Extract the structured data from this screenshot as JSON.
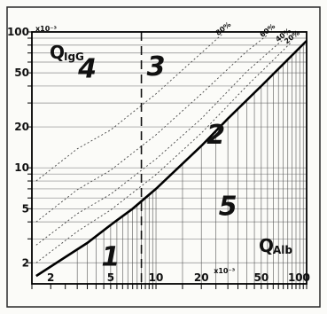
{
  "chart_data": {
    "type": "line",
    "title": "",
    "x_scale": "log",
    "y_scale": "log",
    "xlim": [
      1.5,
      100
    ],
    "ylim": [
      1.4,
      100
    ],
    "x_ticks": [
      {
        "value": 2,
        "label": "2"
      },
      {
        "value": 5,
        "label": "5"
      },
      {
        "value": 10,
        "label": "10"
      },
      {
        "value": 20,
        "label": "20"
      },
      {
        "value": 50,
        "label": "50"
      },
      {
        "value": 100,
        "label": "100"
      }
    ],
    "x_unit": "x10⁻³",
    "y_ticks": [
      {
        "value": 2,
        "label": "2"
      },
      {
        "value": 5,
        "label": "5"
      },
      {
        "value": 10,
        "label": "10"
      },
      {
        "value": 20,
        "label": "20"
      },
      {
        "value": 50,
        "label": "50"
      },
      {
        "value": 100,
        "label": "100"
      }
    ],
    "y_unit": "x10⁻³",
    "xlabel_main": "Q",
    "xlabel_sub": "Alb",
    "ylabel_main": "Q",
    "ylabel_sub": "IgG",
    "reference_line_x": 8,
    "reference_line_style": "dashed",
    "boundary_curve": {
      "style": "solid",
      "points": [
        [
          1.6,
          1.6
        ],
        [
          2.5,
          2.2
        ],
        [
          3.5,
          2.8
        ],
        [
          5,
          3.8
        ],
        [
          7,
          5.0
        ],
        [
          10,
          7.0
        ],
        [
          20,
          14.5
        ],
        [
          30,
          23
        ],
        [
          50,
          40
        ],
        [
          70,
          58
        ],
        [
          100,
          86
        ]
      ]
    },
    "intrathecal_fraction_lines": [
      {
        "name": "20%",
        "points": [
          [
            1.6,
            2.0
          ],
          [
            3,
            3.4
          ],
          [
            5,
            4.9
          ],
          [
            10,
            8.9
          ],
          [
            20,
            18
          ],
          [
            40,
            40
          ],
          [
            60,
            62
          ],
          [
            80,
            85
          ]
        ]
      },
      {
        "name": "40%",
        "points": [
          [
            1.6,
            2.7
          ],
          [
            3,
            4.6
          ],
          [
            5,
            6.4
          ],
          [
            10,
            11.6
          ],
          [
            20,
            23
          ],
          [
            40,
            51
          ],
          [
            60,
            76
          ],
          [
            70,
            88
          ]
        ]
      },
      {
        "name": "60%",
        "points": [
          [
            1.6,
            4.0
          ],
          [
            3,
            6.9
          ],
          [
            5,
            9.6
          ],
          [
            10,
            17.5
          ],
          [
            20,
            35
          ],
          [
            40,
            72
          ],
          [
            55,
            95
          ]
        ]
      },
      {
        "name": "80%",
        "points": [
          [
            1.6,
            8.0
          ],
          [
            3,
            13.8
          ],
          [
            5,
            19
          ],
          [
            10,
            35
          ],
          [
            20,
            70
          ],
          [
            28,
            98
          ]
        ]
      }
    ],
    "regions": [
      {
        "label": "1",
        "x": 5,
        "y": 1.9
      },
      {
        "label": "2",
        "x": 25,
        "y": 15
      },
      {
        "label": "3",
        "x": 10,
        "y": 48
      },
      {
        "label": "4",
        "x": 3.5,
        "y": 46
      },
      {
        "label": "5",
        "x": 30,
        "y": 4.5
      }
    ],
    "grid": true
  }
}
